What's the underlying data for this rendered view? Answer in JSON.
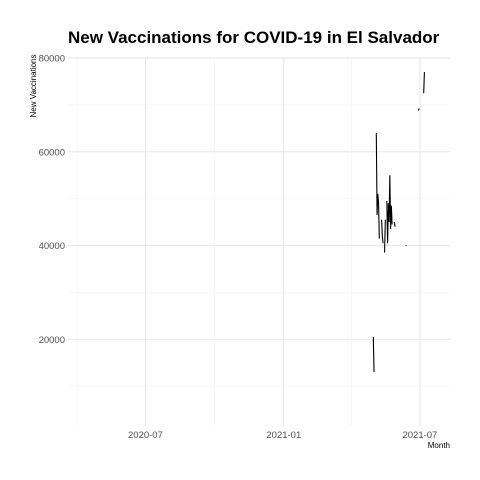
{
  "chart_data": {
    "type": "line",
    "title": "New Vaccinations for COVID-19 in El Salvador",
    "xlabel": "Month",
    "ylabel": "New Vaccinations",
    "x_tick_labels": [
      "2020-07",
      "2021-01",
      "2021-07"
    ],
    "y_tick_labels": [
      "20000",
      "40000",
      "60000",
      "80000"
    ],
    "xlim": [
      "2020-03-20",
      "2021-08-10"
    ],
    "ylim": [
      1500,
      80000
    ],
    "grid": true,
    "legend": "none",
    "line_color": "#000000",
    "series": [
      {
        "values": [
          {
            "x": "2021-04-30",
            "y": 20500
          },
          {
            "x": "2021-05-01",
            "y": 13000
          },
          {
            "x": null,
            "y": null
          },
          {
            "x": "2021-05-04",
            "y": 64000
          },
          {
            "x": "2021-05-05",
            "y": 46500
          },
          {
            "x": "2021-05-06",
            "y": 51000
          },
          {
            "x": "2021-05-07",
            "y": 49000
          },
          {
            "x": "2021-05-08",
            "y": 41500
          },
          {
            "x": null,
            "y": null
          },
          {
            "x": "2021-05-11",
            "y": 45500
          },
          {
            "x": "2021-05-12",
            "y": 42000
          },
          {
            "x": "2021-05-13",
            "y": 40500
          },
          {
            "x": null,
            "y": null
          },
          {
            "x": "2021-05-15",
            "y": 38500
          },
          {
            "x": "2021-05-16",
            "y": 45500
          },
          {
            "x": null,
            "y": null
          },
          {
            "x": "2021-05-18",
            "y": 49500
          },
          {
            "x": "2021-05-19",
            "y": 40500
          },
          {
            "x": "2021-05-20",
            "y": 49000
          },
          {
            "x": "2021-05-21",
            "y": 45000
          },
          {
            "x": "2021-05-22",
            "y": 55000
          },
          {
            "x": "2021-05-23",
            "y": 43500
          },
          {
            "x": "2021-05-24",
            "y": 48500
          },
          {
            "x": "2021-05-25",
            "y": 44500
          },
          {
            "x": null,
            "y": null
          },
          {
            "x": "2021-05-28",
            "y": 45000
          },
          {
            "x": "2021-05-29",
            "y": 44000
          },
          {
            "x": null,
            "y": null
          },
          {
            "x": "2021-06-12",
            "y": 40000
          },
          {
            "x": "2021-06-13",
            "y": 40000
          },
          {
            "x": null,
            "y": null
          },
          {
            "x": "2021-06-29",
            "y": 68800
          },
          {
            "x": "2021-06-30",
            "y": 69200
          },
          {
            "x": null,
            "y": null
          },
          {
            "x": "2021-07-06",
            "y": 72500
          },
          {
            "x": "2021-07-07",
            "y": 77000
          }
        ]
      }
    ]
  }
}
